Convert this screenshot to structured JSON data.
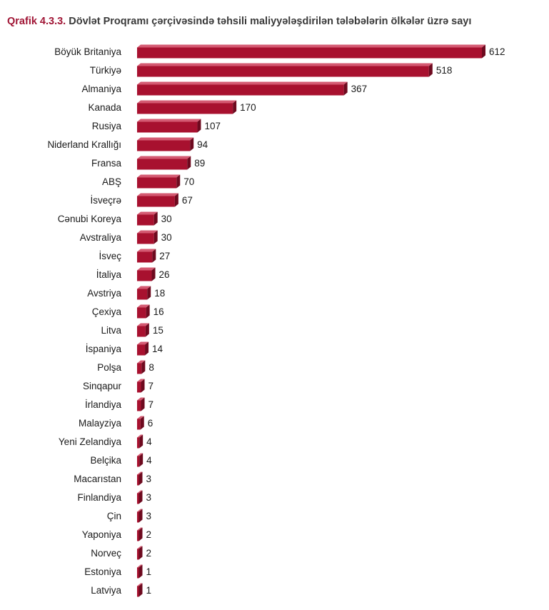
{
  "chart_data": {
    "type": "bar",
    "orientation": "horizontal",
    "title_number": "Qrafik 4.3.3.",
    "title": "Dövlət Proqramı çərçivəsində təhsili maliyyələşdirilən tələbələrin ölkələr üzrə sayı",
    "categories": [
      "Böyük Britaniya",
      "Türkiyə",
      "Almaniya",
      "Kanada",
      "Rusiya",
      "Niderland Krallığı",
      "Fransa",
      "ABŞ",
      "İsveçrə",
      "Cənubi Koreya",
      "Avstraliya",
      "İsveç",
      "İtaliya",
      "Avstriya",
      "Çexiya",
      "Litva",
      "İspaniya",
      "Polşa",
      "Sinqapur",
      "İrlandiya",
      "Malayziya",
      "Yeni Zelandiya",
      "Belçika",
      "Macarıstan",
      "Finlandiya",
      "Çin",
      "Yaponiya",
      "Norveç",
      "Estoniya",
      "Latviya"
    ],
    "values": [
      612,
      518,
      367,
      170,
      107,
      94,
      89,
      70,
      67,
      30,
      30,
      27,
      26,
      18,
      16,
      15,
      14,
      8,
      7,
      7,
      6,
      4,
      4,
      3,
      3,
      3,
      2,
      2,
      1,
      1
    ],
    "value_labels": [
      "612",
      "518",
      "367",
      "170",
      "107",
      "94",
      "89",
      "70",
      "67",
      "30",
      "30",
      "27",
      "26",
      "18",
      "16",
      "15",
      "14",
      "8",
      "7",
      "7",
      "6",
      "4",
      "4",
      "3",
      "3",
      "3",
      "2",
      "2",
      "1",
      "1"
    ],
    "xlim": [
      0,
      612
    ],
    "grid": false,
    "bar_color": "#a8112f",
    "bar_top_color": "#d45a72",
    "bar_side_color": "#6e0a1f",
    "title_color": "#a01535",
    "text_color": "#1a1a1a"
  }
}
